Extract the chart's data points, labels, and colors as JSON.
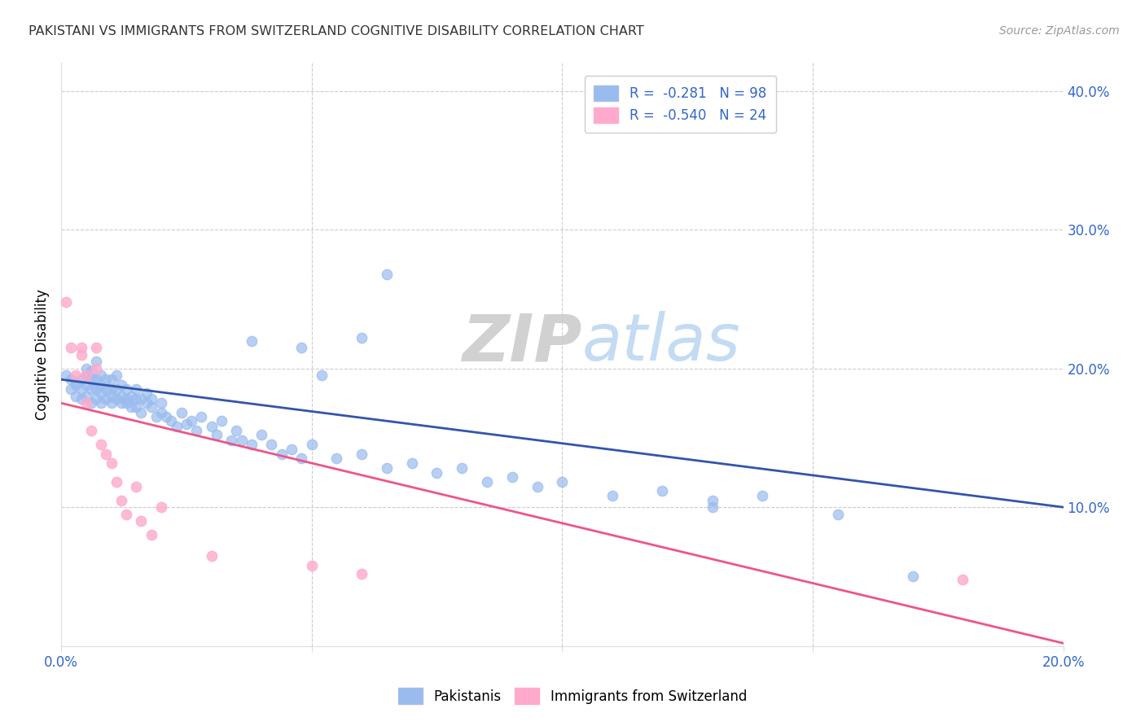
{
  "title": "PAKISTANI VS IMMIGRANTS FROM SWITZERLAND COGNITIVE DISABILITY CORRELATION CHART",
  "source": "Source: ZipAtlas.com",
  "ylabel": "Cognitive Disability",
  "xlim": [
    0.0,
    0.2
  ],
  "ylim": [
    0.0,
    0.42
  ],
  "blue_color": "#99BBEE",
  "pink_color": "#FFAACC",
  "blue_line_color": "#3355AA",
  "pink_line_color": "#EE5588",
  "watermark_zip": "ZIP",
  "watermark_atlas": "atlas",
  "pakistanis_x": [
    0.001,
    0.002,
    0.002,
    0.003,
    0.003,
    0.003,
    0.004,
    0.004,
    0.004,
    0.005,
    0.005,
    0.005,
    0.005,
    0.006,
    0.006,
    0.006,
    0.006,
    0.007,
    0.007,
    0.007,
    0.007,
    0.008,
    0.008,
    0.008,
    0.008,
    0.009,
    0.009,
    0.009,
    0.01,
    0.01,
    0.01,
    0.01,
    0.011,
    0.011,
    0.011,
    0.012,
    0.012,
    0.012,
    0.013,
    0.013,
    0.013,
    0.014,
    0.014,
    0.015,
    0.015,
    0.015,
    0.016,
    0.016,
    0.017,
    0.017,
    0.018,
    0.018,
    0.019,
    0.02,
    0.02,
    0.021,
    0.022,
    0.023,
    0.024,
    0.025,
    0.026,
    0.027,
    0.028,
    0.03,
    0.031,
    0.032,
    0.034,
    0.035,
    0.036,
    0.038,
    0.04,
    0.042,
    0.044,
    0.046,
    0.048,
    0.05,
    0.055,
    0.06,
    0.065,
    0.07,
    0.075,
    0.08,
    0.085,
    0.09,
    0.095,
    0.1,
    0.11,
    0.12,
    0.13,
    0.14,
    0.052,
    0.048,
    0.038,
    0.06,
    0.065,
    0.13,
    0.155,
    0.17
  ],
  "pakistanis_y": [
    0.195,
    0.185,
    0.192,
    0.18,
    0.188,
    0.19,
    0.185,
    0.192,
    0.178,
    0.195,
    0.188,
    0.18,
    0.2,
    0.185,
    0.192,
    0.175,
    0.198,
    0.185,
    0.178,
    0.192,
    0.205,
    0.188,
    0.175,
    0.195,
    0.182,
    0.185,
    0.178,
    0.192,
    0.185,
    0.175,
    0.192,
    0.18,
    0.185,
    0.178,
    0.195,
    0.18,
    0.175,
    0.188,
    0.178,
    0.185,
    0.175,
    0.18,
    0.172,
    0.178,
    0.185,
    0.172,
    0.178,
    0.168,
    0.175,
    0.182,
    0.172,
    0.178,
    0.165,
    0.175,
    0.168,
    0.165,
    0.162,
    0.158,
    0.168,
    0.16,
    0.162,
    0.155,
    0.165,
    0.158,
    0.152,
    0.162,
    0.148,
    0.155,
    0.148,
    0.145,
    0.152,
    0.145,
    0.138,
    0.142,
    0.135,
    0.145,
    0.135,
    0.138,
    0.128,
    0.132,
    0.125,
    0.128,
    0.118,
    0.122,
    0.115,
    0.118,
    0.108,
    0.112,
    0.105,
    0.108,
    0.195,
    0.215,
    0.22,
    0.222,
    0.268,
    0.1,
    0.095,
    0.05
  ],
  "swiss_x": [
    0.001,
    0.002,
    0.003,
    0.004,
    0.004,
    0.005,
    0.005,
    0.006,
    0.007,
    0.007,
    0.008,
    0.009,
    0.01,
    0.011,
    0.012,
    0.013,
    0.015,
    0.016,
    0.018,
    0.02,
    0.03,
    0.05,
    0.06,
    0.18
  ],
  "swiss_y": [
    0.248,
    0.215,
    0.195,
    0.215,
    0.21,
    0.195,
    0.175,
    0.155,
    0.215,
    0.2,
    0.145,
    0.138,
    0.132,
    0.118,
    0.105,
    0.095,
    0.115,
    0.09,
    0.08,
    0.1,
    0.065,
    0.058,
    0.052,
    0.048
  ],
  "blue_trend_x": [
    0.0,
    0.2
  ],
  "blue_trend_y": [
    0.192,
    0.1
  ],
  "pink_trend_x": [
    0.0,
    0.2
  ],
  "pink_trend_y": [
    0.175,
    0.002
  ]
}
